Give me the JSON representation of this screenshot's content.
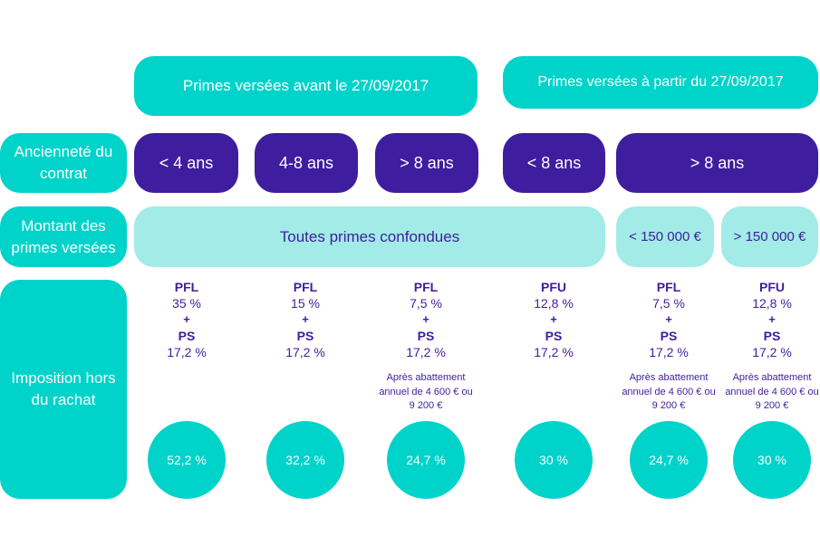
{
  "headers": {
    "before": "Primes versées avant le 27/09/2017",
    "after": "Primes versées à partir du 27/09/2017"
  },
  "row_labels": {
    "anciennete": "Ancienneté du contrat",
    "montant": "Montant des primes versées",
    "imposition": "Imposition hors du rachat"
  },
  "anciennete": [
    "< 4 ans",
    "4-8 ans",
    "> 8 ans",
    "< 8 ans",
    "> 8 ans"
  ],
  "montant": [
    "Toutes primes confondues",
    "< 150 000 €",
    "> 150 000 €"
  ],
  "columns": [
    {
      "tax": "PFL",
      "rate": "35 %",
      "plus": "+",
      "ps": "PS",
      "ps_rate": "17,2 %",
      "note": "",
      "total": "52,2 %"
    },
    {
      "tax": "PFL",
      "rate": "15 %",
      "plus": "+",
      "ps": "PS",
      "ps_rate": "17,2 %",
      "note": "",
      "total": "32,2 %"
    },
    {
      "tax": "PFL",
      "rate": "7,5 %",
      "plus": "+",
      "ps": "PS",
      "ps_rate": "17,2 %",
      "note": "Après abattement annuel de 4 600 € ou 9 200 €",
      "total": "24,7 %"
    },
    {
      "tax": "PFU",
      "rate": "12,8 %",
      "plus": "+",
      "ps": "PS",
      "ps_rate": "17,2 %",
      "note": "",
      "total": "30 %"
    },
    {
      "tax": "PFL",
      "rate": "7,5 %",
      "plus": "+",
      "ps": "PS",
      "ps_rate": "17,2 %",
      "note": "Après abattement annuel de 4 600 € ou 9 200 €",
      "total": "24,7 %"
    },
    {
      "tax": "PFU",
      "rate": "12,8 %",
      "plus": "+",
      "ps": "PS",
      "ps_rate": "17,2 %",
      "note": "Après abattement annuel de 4 600 € ou 9 200 €",
      "total": "30 %"
    }
  ],
  "colors": {
    "teal": "#00d3ca",
    "purple": "#3f1d9f",
    "light_teal": "#a2ebe6"
  }
}
